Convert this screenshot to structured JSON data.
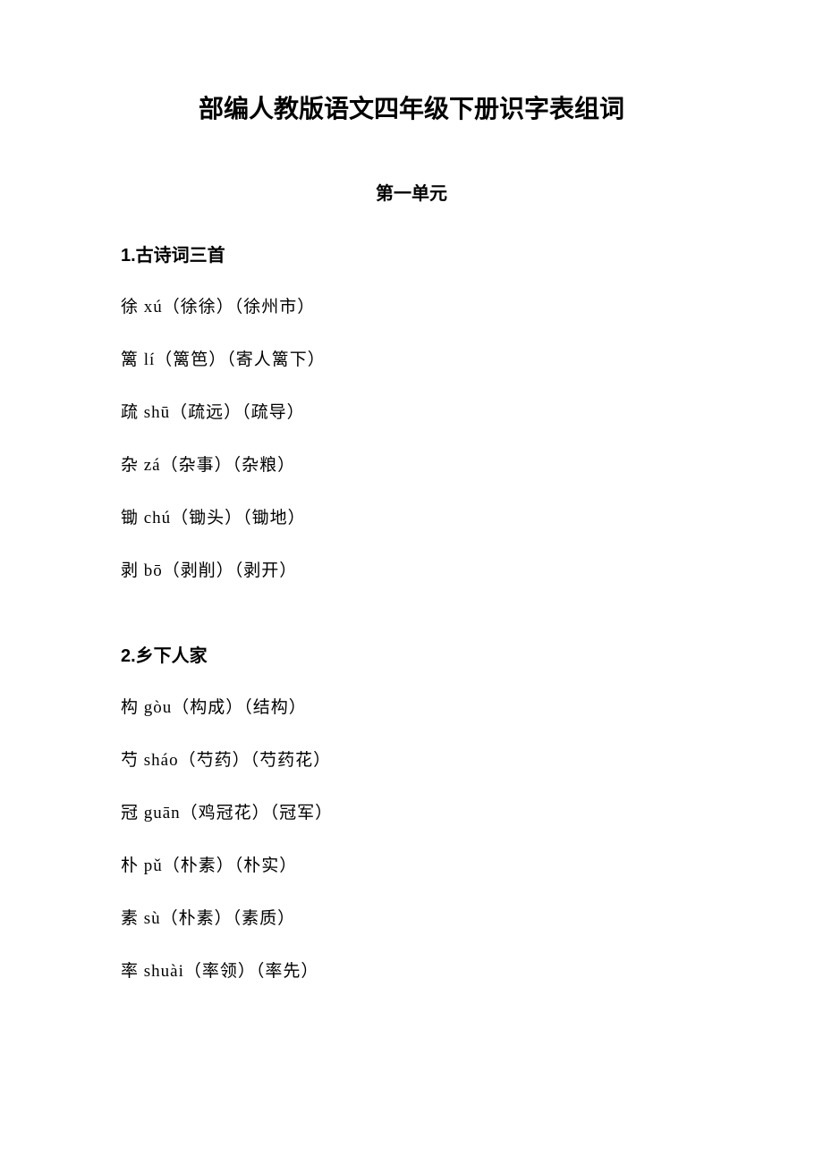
{
  "title": "部编人教版语文四年级下册识字表组词",
  "unit": "第一单元",
  "section1": {
    "heading": "1.古诗词三首",
    "entries": [
      "徐 xú（徐徐）（徐州市）",
      "篱 lí（篱笆）（寄人篱下）",
      "疏 shū（疏远）（疏导）",
      "杂 zá（杂事）（杂粮）",
      "锄 chú（锄头）（锄地）",
      "剥 bō（剥削）（剥开）"
    ]
  },
  "section2": {
    "heading": "2.乡下人家",
    "entries": [
      "构 gòu（构成）（结构）",
      "芍 sháo（芍药）（芍药花）",
      "冠 guān（鸡冠花）（冠军）",
      "朴 pǔ（朴素）（朴实）",
      "素 sù（朴素）（素质）",
      "率 shuài（率领）（率先）"
    ]
  }
}
